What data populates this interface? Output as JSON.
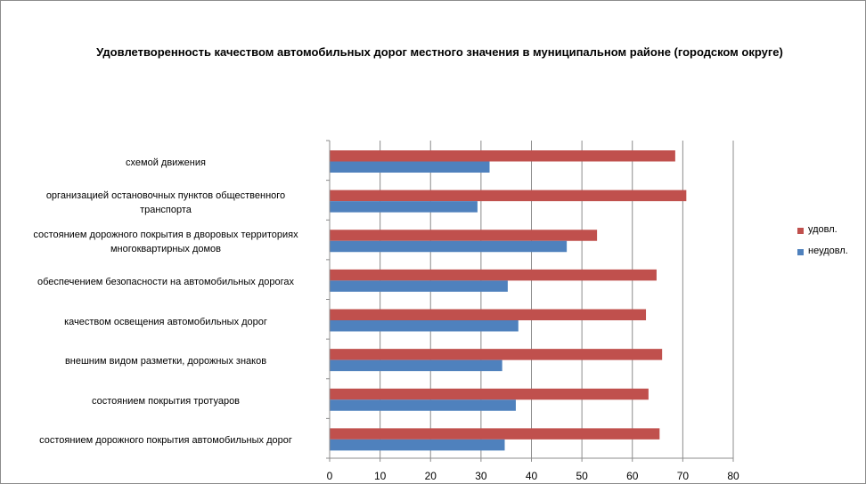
{
  "chart_data": {
    "type": "bar",
    "orientation": "horizontal",
    "title": "Удовлетворенность качеством автомобильных дорог местного значения в муниципальном районе (городском округе)",
    "xlabel": "",
    "ylabel": "",
    "xlim": [
      0,
      80
    ],
    "xticks": [
      "0",
      "10",
      "20",
      "30",
      "40",
      "50",
      "60",
      "70",
      "80"
    ],
    "grid": true,
    "legend_position": "right",
    "categories": [
      [
        "схемой движения"
      ],
      [
        "организацией остановочных пунктов общественного",
        "транспорта"
      ],
      [
        "состоянием дорожного покрытия в дворовых территориях",
        "многоквартирных домов"
      ],
      [
        "обеспечением  безопасности на автомобильных дорогах"
      ],
      [
        "качеством освещения  автомобильных дорог"
      ],
      [
        "внешним  видом разметки, дорожных знаков"
      ],
      [
        "состоянием покрытия тротуаров"
      ],
      [
        "состоянием дорожного покрытия автомобильных дорог"
      ]
    ],
    "series": [
      {
        "name": "удовл.",
        "color": "#c0504d",
        "values": [
          68.5,
          70.7,
          53,
          64.8,
          62.7,
          65.9,
          63.2,
          65.4
        ]
      },
      {
        "name": "неудовл.",
        "color": "#4f81bd",
        "values": [
          31.7,
          29.3,
          47,
          35.3,
          37.4,
          34.2,
          36.9,
          34.7
        ]
      }
    ]
  }
}
